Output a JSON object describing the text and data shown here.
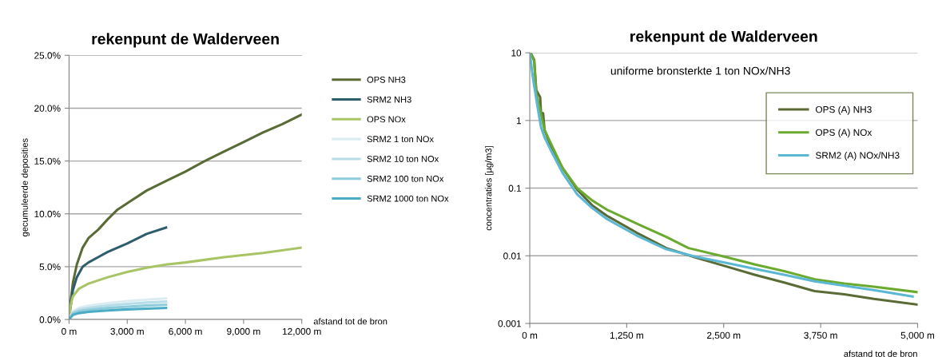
{
  "chart_data": [
    {
      "type": "line",
      "title": "rekenpunt de Walderveen",
      "xlabel": "afstand tot de bron",
      "ylabel": "gecumuleerde deposities",
      "legend": "right",
      "grid": "y",
      "xlim": [
        0,
        12000
      ],
      "xticks": [
        {
          "value": 0,
          "label": "0 m"
        },
        {
          "value": 3000,
          "label": "3,000 m"
        },
        {
          "value": 6000,
          "label": "6,000 m"
        },
        {
          "value": 9000,
          "label": "9,000 m"
        },
        {
          "value": 12000,
          "label": "12,000 m"
        }
      ],
      "ylim": [
        0,
        25
      ],
      "yticks": [
        {
          "value": 0,
          "label": "0.0%"
        },
        {
          "value": 5,
          "label": "5.0%"
        },
        {
          "value": 10,
          "label": "10.0%"
        },
        {
          "value": 15,
          "label": "15.0%"
        },
        {
          "value": 20,
          "label": "20.0%"
        },
        {
          "value": 25,
          "label": "25.0%"
        }
      ],
      "series": [
        {
          "name": "OPS NH3",
          "color": "#5a6b35",
          "x": [
            0,
            100,
            200,
            400,
            700,
            1000,
            1500,
            2000,
            2500,
            3000,
            4000,
            5000,
            6000,
            7000,
            8000,
            9000,
            10000,
            11000,
            12000
          ],
          "values": [
            0.3,
            2,
            3.5,
            5.2,
            6.8,
            7.7,
            8.5,
            9.5,
            10.4,
            11,
            12.2,
            13.1,
            14,
            15,
            15.9,
            16.8,
            17.7,
            18.5,
            19.4
          ]
        },
        {
          "name": "SRM2 NH3",
          "color": "#2e5e6e",
          "x": [
            0,
            100,
            200,
            400,
            700,
            1000,
            1500,
            2000,
            3000,
            4000,
            5000
          ],
          "values": [
            0.2,
            1.5,
            2.8,
            4.0,
            5.0,
            5.4,
            5.9,
            6.4,
            7.2,
            8.1,
            8.7
          ]
        },
        {
          "name": "OPS NOx",
          "color": "#a8c464",
          "x": [
            0,
            100,
            200,
            500,
            1000,
            2000,
            3000,
            4000,
            5000,
            6000,
            8000,
            10000,
            12000
          ],
          "values": [
            0.2,
            1.5,
            2.2,
            2.9,
            3.4,
            4.0,
            4.5,
            4.9,
            5.2,
            5.4,
            5.9,
            6.3,
            6.8
          ]
        },
        {
          "name": "SRM2 1 ton NOx",
          "color": "#dbecf2",
          "x": [
            0,
            200,
            500,
            1000,
            2000,
            3000,
            4000,
            5000
          ],
          "values": [
            0,
            0.8,
            1.1,
            1.3,
            1.56,
            1.74,
            1.88,
            2.0
          ]
        },
        {
          "name": "SRM2 10 ton NOx",
          "color": "#b6dde8",
          "x": [
            0,
            200,
            500,
            1000,
            2000,
            3000,
            4000,
            5000
          ],
          "values": [
            0,
            0.68,
            0.94,
            1.1,
            1.33,
            1.48,
            1.6,
            1.7
          ]
        },
        {
          "name": "SRM2 100 ton NOx",
          "color": "#8ecbdb",
          "x": [
            0,
            200,
            500,
            1000,
            2000,
            3000,
            4000,
            5000
          ],
          "values": [
            0,
            0.56,
            0.77,
            0.91,
            1.09,
            1.22,
            1.32,
            1.4
          ]
        },
        {
          "name": "SRM2 1000 ton NOx",
          "color": "#4bacc6",
          "x": [
            0,
            200,
            500,
            1000,
            2000,
            3000,
            4000,
            5000
          ],
          "values": [
            0,
            0.44,
            0.6,
            0.72,
            0.86,
            0.96,
            1.03,
            1.1
          ]
        }
      ]
    },
    {
      "type": "line",
      "title": "rekenpunt de Walderveen",
      "xlabel": "afstand tot de bron",
      "ylabel": "concentraties [µg/m3]",
      "legend": "top right",
      "grid": "y",
      "log": "y",
      "annotations": [
        "uniforme bronsterkte 1 ton NOx/NH3"
      ],
      "xlim": [
        0,
        5000
      ],
      "xticks": [
        {
          "value": 0,
          "label": "0 m"
        },
        {
          "value": 1250,
          "label": "1,250 m"
        },
        {
          "value": 2500,
          "label": "2,500 m"
        },
        {
          "value": 3750,
          "label": "3,750 m"
        },
        {
          "value": 5000,
          "label": "5,000 m"
        }
      ],
      "ylim": [
        0.001,
        10
      ],
      "yticks": [
        0.001,
        0.01,
        0.1,
        1,
        10
      ],
      "series": [
        {
          "name": "OPS (A) NH3",
          "color": "#5a6b35",
          "x": [
            11,
            57,
            84,
            134,
            145,
            172,
            191,
            268,
            421,
            612,
            803,
            995,
            1377,
            1760,
            2142,
            2525,
            2907,
            3290,
            3673,
            4055,
            4437,
            5000
          ],
          "values": [
            10,
            7.9,
            2.8,
            2.2,
            1.28,
            1.28,
            0.72,
            0.43,
            0.2,
            0.095,
            0.056,
            0.039,
            0.022,
            0.013,
            0.0094,
            0.007,
            0.0052,
            0.004,
            0.003,
            0.0027,
            0.0023,
            0.0019
          ]
        },
        {
          "name": "OPS (A) NOx",
          "color": "#6aaa2e",
          "x": [
            11,
            57,
            84,
            191,
            421,
            612,
            803,
            995,
            1377,
            1760,
            2047,
            2525,
            2907,
            3290,
            3673,
            4055,
            4437,
            5000
          ],
          "values": [
            10,
            7.5,
            2.5,
            0.72,
            0.2,
            0.1,
            0.066,
            0.048,
            0.03,
            0.019,
            0.013,
            0.0096,
            0.0074,
            0.0059,
            0.0045,
            0.0039,
            0.0035,
            0.0029
          ]
        },
        {
          "name": "SRM2 (A) NOx/NH3",
          "color": "#5bb8d4",
          "x": [
            0,
            38,
            96,
            145,
            191,
            268,
            421,
            612,
            803,
            995,
            1377,
            1760,
            2142,
            2525,
            2907,
            3290,
            3673,
            4055,
            4437,
            4935
          ],
          "values": [
            9.8,
            4.5,
            1.7,
            0.8,
            0.56,
            0.37,
            0.17,
            0.081,
            0.051,
            0.035,
            0.02,
            0.0125,
            0.0097,
            0.0079,
            0.0064,
            0.0052,
            0.0042,
            0.0036,
            0.0031,
            0.0025
          ]
        }
      ]
    }
  ]
}
